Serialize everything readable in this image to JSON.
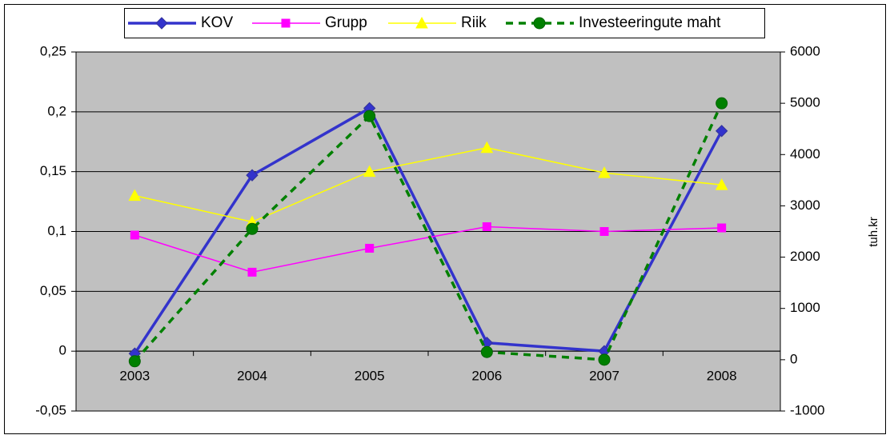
{
  "chart_data": {
    "type": "line",
    "categories": [
      "2003",
      "2004",
      "2005",
      "2006",
      "2007",
      "2008"
    ],
    "series": [
      {
        "name": "KOV",
        "color": "#3333cc",
        "marker": "diamond",
        "values": [
          -0.002,
          0.147,
          0.203,
          0.007,
          0,
          0.184
        ]
      },
      {
        "name": "Grupp",
        "color": "#ff00ff",
        "marker": "square",
        "values": [
          0.097,
          0.066,
          0.086,
          0.104,
          0.1,
          0.103
        ]
      },
      {
        "name": "Riik",
        "color": "#ffff00",
        "marker": "triangle",
        "values": [
          0.13,
          0.108,
          0.15,
          0.17,
          0.149,
          0.139
        ]
      },
      {
        "name": "Investeeringute maht",
        "color": "#008000",
        "marker": "circle",
        "dashed": true,
        "axis": "y2",
        "values": [
          -30,
          2550,
          4750,
          150,
          0,
          5000
        ]
      }
    ],
    "ylim": [
      -0.05,
      0.25
    ],
    "yticks": [
      {
        "value": -0.05,
        "label": "-0,05"
      },
      0,
      {
        "value": 0.05,
        "label": "0,05"
      },
      {
        "value": 0.1,
        "label": "0,1"
      },
      {
        "value": 0.15,
        "label": "0,15"
      },
      {
        "value": 0.2,
        "label": "0,2"
      },
      {
        "value": 0.25,
        "label": "0,25"
      }
    ],
    "y2lim": [
      -1000,
      6000
    ],
    "y2ticks": [
      -1000,
      0,
      1000,
      2000,
      3000,
      4000,
      5000,
      6000
    ],
    "y2label": "tuh.kr",
    "grid": true,
    "legend": "top"
  }
}
